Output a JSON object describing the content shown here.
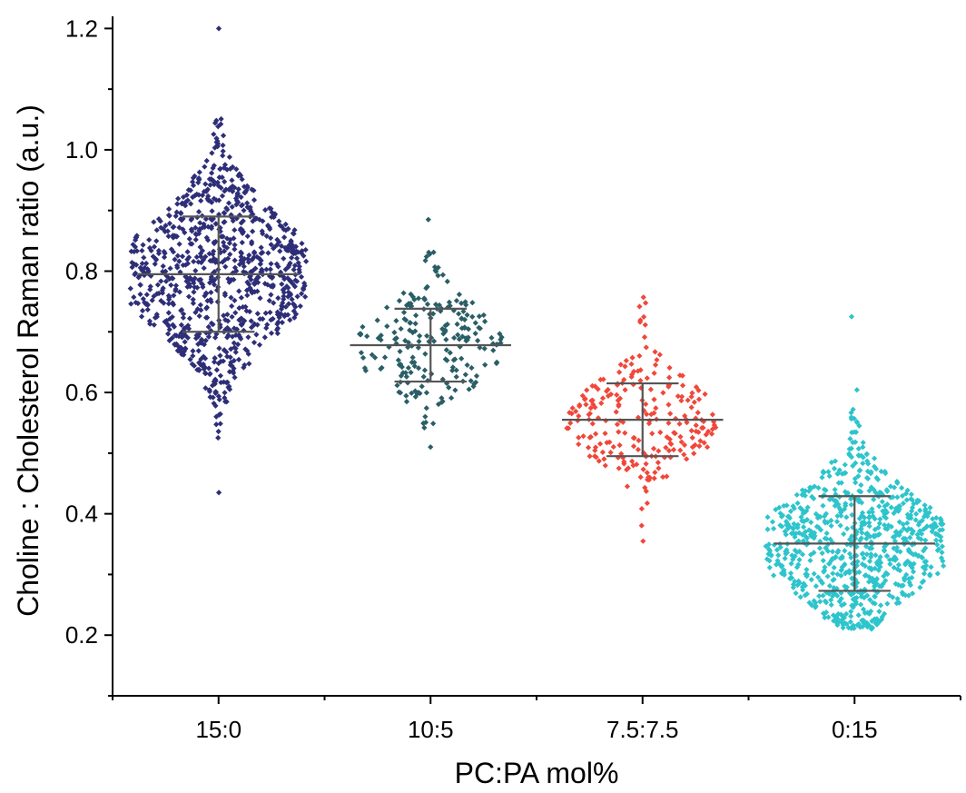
{
  "chart_data": {
    "type": "scatter",
    "subtype": "beeswarm-with-mean-sd",
    "title": "",
    "xlabel": "PC:PA mol%",
    "ylabel": "Choline : Cholesterol Raman ratio (a.u.)",
    "ylim": [
      0.1,
      1.22
    ],
    "yticks": [
      0.2,
      0.4,
      0.6,
      0.8,
      1.0,
      1.2
    ],
    "ytick_labels": [
      "0.2",
      "0.4",
      "0.6",
      "0.8",
      "1.0",
      "1.2"
    ],
    "categories": [
      "15:0",
      "10:5",
      "7.5:7.5",
      "0:15"
    ],
    "series": [
      {
        "name": "15:0",
        "color": "#2e2e78",
        "count": 900,
        "mean": 0.795,
        "sd": 0.095,
        "min": 0.435,
        "max": 1.2,
        "spread": 0.42
      },
      {
        "name": "10:5",
        "color": "#2a5e66",
        "count": 220,
        "mean": 0.678,
        "sd": 0.06,
        "min": 0.51,
        "max": 0.885,
        "spread": 0.34
      },
      {
        "name": "7.5:7.5",
        "color": "#f0473a",
        "count": 240,
        "mean": 0.555,
        "sd": 0.06,
        "min": 0.355,
        "max": 0.757,
        "spread": 0.36
      },
      {
        "name": "0:15",
        "color": "#2ec4cc",
        "count": 800,
        "mean": 0.351,
        "sd": 0.078,
        "min": 0.21,
        "max": 0.725,
        "spread": 0.42
      }
    ]
  }
}
